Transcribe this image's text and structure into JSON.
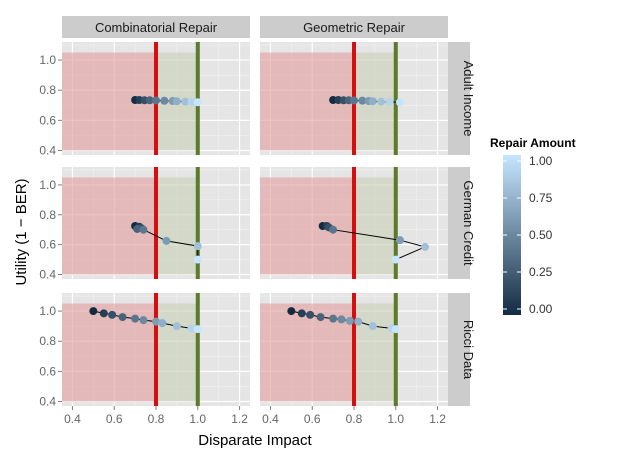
{
  "chart_data": {
    "type": "scatter",
    "x_label": "Disparate Impact",
    "y_label": "Utility (1 − BER)",
    "xlim": [
      0.35,
      1.25
    ],
    "x_ticks": [
      0.4,
      0.6,
      0.8,
      1.0,
      1.2
    ],
    "x_tick_labels": [
      "0.4",
      "0.6",
      "0.8",
      "1.0",
      "1.2"
    ],
    "y_ticks": [
      0.4,
      0.6,
      0.8,
      1.0
    ],
    "y_tick_labels": [
      "0.4",
      "0.6",
      "0.8",
      "1.0"
    ],
    "ylims": [
      [
        0.37,
        1.12
      ],
      [
        0.37,
        1.12
      ],
      [
        0.37,
        1.12
      ]
    ],
    "regions": [
      {
        "name": "red-region",
        "x_from": 0.35,
        "x_to": 0.8,
        "color": "#e39b9b"
      },
      {
        "name": "green-region",
        "x_from": 0.8,
        "x_to": 1.0,
        "color": "#c8cfb4"
      }
    ],
    "vlines": [
      {
        "name": "threshold-line",
        "x": 0.8,
        "color": "#d40f0f"
      },
      {
        "name": "parity-line",
        "x": 1.0,
        "color": "#5b7a2c"
      }
    ],
    "columns": [
      "Combinatorial Repair",
      "Geometric Repair"
    ],
    "rows": [
      "Adult Income",
      "German Credit",
      "Ricci Data"
    ],
    "legend": {
      "title": "Repair Amount",
      "ticks": [
        0,
        0.25,
        0.5,
        0.75,
        1.0
      ],
      "tick_labels": [
        "0.00",
        "0.25",
        "0.50",
        "0.75",
        "1.00"
      ],
      "color_low": "#132b43",
      "color_high": "#c6e6ff"
    },
    "panels": [
      {
        "row": 0,
        "col": 0,
        "points": [
          {
            "x": 0.7,
            "y": 0.735,
            "repair": 0.0
          },
          {
            "x": 0.72,
            "y": 0.735,
            "repair": 0.1
          },
          {
            "x": 0.745,
            "y": 0.733,
            "repair": 0.2
          },
          {
            "x": 0.77,
            "y": 0.733,
            "repair": 0.3
          },
          {
            "x": 0.8,
            "y": 0.732,
            "repair": 0.4
          },
          {
            "x": 0.84,
            "y": 0.73,
            "repair": 0.5
          },
          {
            "x": 0.88,
            "y": 0.728,
            "repair": 0.6
          },
          {
            "x": 0.9,
            "y": 0.727,
            "repair": 0.7
          },
          {
            "x": 0.94,
            "y": 0.724,
            "repair": 0.8
          },
          {
            "x": 0.97,
            "y": 0.722,
            "repair": 0.9
          },
          {
            "x": 1.0,
            "y": 0.72,
            "repair": 1.0
          }
        ]
      },
      {
        "row": 0,
        "col": 1,
        "points": [
          {
            "x": 0.7,
            "y": 0.735,
            "repair": 0.0
          },
          {
            "x": 0.725,
            "y": 0.735,
            "repair": 0.1
          },
          {
            "x": 0.75,
            "y": 0.733,
            "repair": 0.2
          },
          {
            "x": 0.775,
            "y": 0.733,
            "repair": 0.3
          },
          {
            "x": 0.8,
            "y": 0.732,
            "repair": 0.4
          },
          {
            "x": 0.84,
            "y": 0.731,
            "repair": 0.5
          },
          {
            "x": 0.87,
            "y": 0.728,
            "repair": 0.6
          },
          {
            "x": 0.89,
            "y": 0.727,
            "repair": 0.7
          },
          {
            "x": 0.93,
            "y": 0.724,
            "repair": 0.8
          },
          {
            "x": 0.97,
            "y": 0.722,
            "repair": 0.9
          },
          {
            "x": 1.02,
            "y": 0.72,
            "repair": 1.0
          }
        ]
      },
      {
        "row": 1,
        "col": 0,
        "points": [
          {
            "x": 0.7,
            "y": 0.725,
            "repair": 0.0
          },
          {
            "x": 0.72,
            "y": 0.72,
            "repair": 0.1
          },
          {
            "x": 0.73,
            "y": 0.71,
            "repair": 0.2
          },
          {
            "x": 0.71,
            "y": 0.705,
            "repair": 0.3
          },
          {
            "x": 0.74,
            "y": 0.7,
            "repair": 0.4
          },
          {
            "x": 0.85,
            "y": 0.625,
            "repair": 0.6
          },
          {
            "x": 1.0,
            "y": 0.59,
            "repair": 0.8
          },
          {
            "x": 1.0,
            "y": 0.5,
            "repair": 1.0
          }
        ]
      },
      {
        "row": 1,
        "col": 1,
        "points": [
          {
            "x": 0.65,
            "y": 0.725,
            "repair": 0.0
          },
          {
            "x": 0.67,
            "y": 0.725,
            "repair": 0.1
          },
          {
            "x": 0.68,
            "y": 0.715,
            "repair": 0.2
          },
          {
            "x": 0.7,
            "y": 0.7,
            "repair": 0.4
          },
          {
            "x": 1.02,
            "y": 0.63,
            "repair": 0.6
          },
          {
            "x": 1.14,
            "y": 0.585,
            "repair": 0.8
          },
          {
            "x": 1.0,
            "y": 0.5,
            "repair": 1.0
          }
        ]
      },
      {
        "row": 2,
        "col": 0,
        "points": [
          {
            "x": 0.5,
            "y": 1.0,
            "repair": 0.0
          },
          {
            "x": 0.55,
            "y": 0.985,
            "repair": 0.1
          },
          {
            "x": 0.59,
            "y": 0.975,
            "repair": 0.2
          },
          {
            "x": 0.64,
            "y": 0.96,
            "repair": 0.3
          },
          {
            "x": 0.7,
            "y": 0.95,
            "repair": 0.4
          },
          {
            "x": 0.74,
            "y": 0.94,
            "repair": 0.5
          },
          {
            "x": 0.8,
            "y": 0.93,
            "repair": 0.6
          },
          {
            "x": 0.83,
            "y": 0.92,
            "repair": 0.7
          },
          {
            "x": 0.9,
            "y": 0.9,
            "repair": 0.8
          },
          {
            "x": 0.97,
            "y": 0.885,
            "repair": 0.9
          },
          {
            "x": 1.0,
            "y": 0.88,
            "repair": 1.0
          }
        ]
      },
      {
        "row": 2,
        "col": 1,
        "points": [
          {
            "x": 0.5,
            "y": 1.0,
            "repair": 0.0
          },
          {
            "x": 0.55,
            "y": 0.985,
            "repair": 0.1
          },
          {
            "x": 0.59,
            "y": 0.975,
            "repair": 0.2
          },
          {
            "x": 0.64,
            "y": 0.96,
            "repair": 0.3
          },
          {
            "x": 0.7,
            "y": 0.95,
            "repair": 0.4
          },
          {
            "x": 0.74,
            "y": 0.945,
            "repair": 0.5
          },
          {
            "x": 0.78,
            "y": 0.935,
            "repair": 0.6
          },
          {
            "x": 0.82,
            "y": 0.93,
            "repair": 0.7
          },
          {
            "x": 0.89,
            "y": 0.9,
            "repair": 0.8
          },
          {
            "x": 0.98,
            "y": 0.885,
            "repair": 0.9
          },
          {
            "x": 1.0,
            "y": 0.88,
            "repair": 1.0
          }
        ]
      }
    ]
  }
}
